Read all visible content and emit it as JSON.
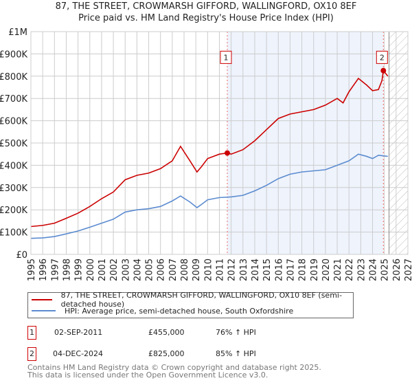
{
  "title": "87, THE STREET, CROWMARSH GIFFORD, WALLINGFORD, OX10 8EF",
  "subtitle": "Price paid vs. HM Land Registry's House Price Index (HPI)",
  "chart_data": {
    "type": "line",
    "xlim": [
      1995,
      2027
    ],
    "ylim": [
      0,
      1000000
    ],
    "x_ticks": [
      "1995",
      "1996",
      "1997",
      "1998",
      "1999",
      "2000",
      "2001",
      "2002",
      "2003",
      "2004",
      "2005",
      "2006",
      "2007",
      "2008",
      "2009",
      "2010",
      "2011",
      "2012",
      "2013",
      "2014",
      "2015",
      "2016",
      "2017",
      "2018",
      "2019",
      "2020",
      "2021",
      "2022",
      "2023",
      "2024",
      "2025",
      "2026",
      "2027"
    ],
    "y_ticks": [
      {
        "v": 0,
        "label": "£0"
      },
      {
        "v": 100000,
        "label": "£100K"
      },
      {
        "v": 200000,
        "label": "£200K"
      },
      {
        "v": 300000,
        "label": "£300K"
      },
      {
        "v": 400000,
        "label": "£400K"
      },
      {
        "v": 500000,
        "label": "£500K"
      },
      {
        "v": 600000,
        "label": "£600K"
      },
      {
        "v": 700000,
        "label": "£700K"
      },
      {
        "v": 800000,
        "label": "£800K"
      },
      {
        "v": 900000,
        "label": "£900K"
      },
      {
        "v": 1000000,
        "label": "£1M"
      }
    ],
    "grid": true,
    "shaded_range": [
      2011.67,
      2024.92
    ],
    "forecast_hatch_from": 2025.4,
    "series": [
      {
        "name": "87, THE STREET, CROWMARSH GIFFORD, WALLINGFORD, OX10 8EF (semi-detached house)",
        "color": "#cc0000",
        "points": [
          [
            1995,
            125000
          ],
          [
            1996,
            130000
          ],
          [
            1997,
            140000
          ],
          [
            1998,
            162000
          ],
          [
            1999,
            185000
          ],
          [
            2000,
            215000
          ],
          [
            2001,
            250000
          ],
          [
            2002,
            280000
          ],
          [
            2003,
            335000
          ],
          [
            2004,
            355000
          ],
          [
            2005,
            365000
          ],
          [
            2006,
            385000
          ],
          [
            2007,
            420000
          ],
          [
            2007.7,
            485000
          ],
          [
            2008.5,
            420000
          ],
          [
            2009.1,
            370000
          ],
          [
            2009.5,
            395000
          ],
          [
            2010,
            430000
          ],
          [
            2011,
            450000
          ],
          [
            2011.67,
            455000
          ],
          [
            2012,
            450000
          ],
          [
            2013,
            470000
          ],
          [
            2014,
            510000
          ],
          [
            2015,
            560000
          ],
          [
            2016,
            610000
          ],
          [
            2017,
            630000
          ],
          [
            2018,
            640000
          ],
          [
            2019,
            650000
          ],
          [
            2020,
            670000
          ],
          [
            2021,
            700000
          ],
          [
            2021.5,
            680000
          ],
          [
            2022,
            730000
          ],
          [
            2022.8,
            790000
          ],
          [
            2023.5,
            760000
          ],
          [
            2024,
            735000
          ],
          [
            2024.5,
            740000
          ],
          [
            2024.8,
            780000
          ],
          [
            2024.92,
            825000
          ],
          [
            2025.3,
            800000
          ]
        ]
      },
      {
        "name": "HPI: Average price, semi-detached house, South Oxfordshire",
        "color": "#5b8bd0",
        "points": [
          [
            1995,
            72000
          ],
          [
            1996,
            74000
          ],
          [
            1997,
            80000
          ],
          [
            1998,
            92000
          ],
          [
            1999,
            105000
          ],
          [
            2000,
            122000
          ],
          [
            2001,
            140000
          ],
          [
            2002,
            158000
          ],
          [
            2003,
            190000
          ],
          [
            2004,
            200000
          ],
          [
            2005,
            205000
          ],
          [
            2006,
            215000
          ],
          [
            2007,
            240000
          ],
          [
            2007.7,
            262000
          ],
          [
            2008.5,
            235000
          ],
          [
            2009.1,
            210000
          ],
          [
            2009.5,
            225000
          ],
          [
            2010,
            245000
          ],
          [
            2011,
            255000
          ],
          [
            2012,
            258000
          ],
          [
            2013,
            265000
          ],
          [
            2014,
            285000
          ],
          [
            2015,
            310000
          ],
          [
            2016,
            340000
          ],
          [
            2017,
            360000
          ],
          [
            2018,
            370000
          ],
          [
            2019,
            375000
          ],
          [
            2020,
            380000
          ],
          [
            2021,
            400000
          ],
          [
            2022,
            420000
          ],
          [
            2022.8,
            450000
          ],
          [
            2023.5,
            440000
          ],
          [
            2024,
            430000
          ],
          [
            2024.5,
            445000
          ],
          [
            2025.3,
            440000
          ]
        ]
      }
    ],
    "sales": [
      {
        "label": "1",
        "x": 2011.67,
        "price": 455000,
        "date": "02-SEP-2011",
        "price_text": "£455,000",
        "hpi": "76% ↑ HPI",
        "marker_y": 900000
      },
      {
        "label": "2",
        "x": 2024.92,
        "price": 825000,
        "date": "04-DEC-2024",
        "price_text": "£825,000",
        "hpi": "85% ↑ HPI",
        "marker_y": 900000
      }
    ]
  },
  "legend": {
    "red": "87, THE STREET, CROWMARSH GIFFORD, WALLINGFORD, OX10 8EF (semi-detached house)",
    "blue": "HPI: Average price, semi-detached house, South Oxfordshire"
  },
  "footer": {
    "line1": "Contains HM Land Registry data © Crown copyright and database right 2025.",
    "line2": "This data is licensed under the Open Government Licence v3.0."
  }
}
